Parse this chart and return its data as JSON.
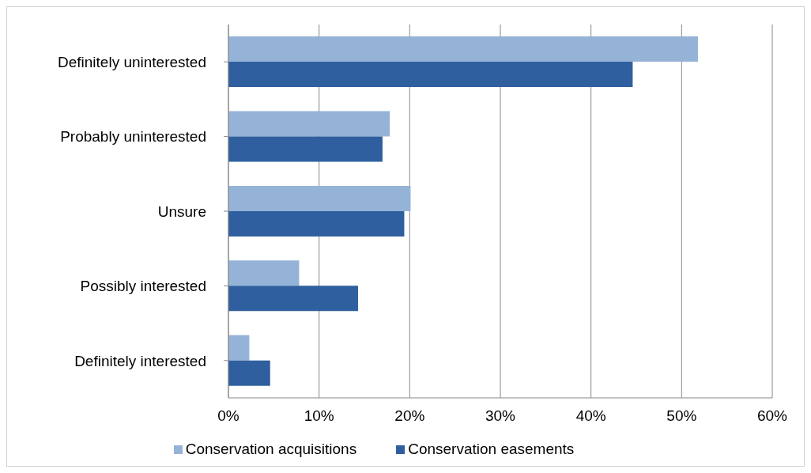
{
  "chart_data": {
    "type": "bar",
    "orientation": "horizontal",
    "categories": [
      "Definitely uninterested",
      "Probably uninterested",
      "Unsure",
      "Possibly interested",
      "Definitely interested"
    ],
    "series": [
      {
        "name": "Conservation acquisitions",
        "color": "#95b3d7",
        "values": [
          51.8,
          17.8,
          20.1,
          7.8,
          2.3
        ]
      },
      {
        "name": "Conservation easements",
        "color": "#2f5f9e",
        "values": [
          44.6,
          17.0,
          19.4,
          14.3,
          4.6
        ]
      }
    ],
    "xlim": [
      0,
      60
    ],
    "xticks": [
      {
        "value": 0,
        "label": "0%"
      },
      {
        "value": 10,
        "label": "10%"
      },
      {
        "value": 20,
        "label": "20%"
      },
      {
        "value": 30,
        "label": "30%"
      },
      {
        "value": 40,
        "label": "40%"
      },
      {
        "value": 50,
        "label": "50%"
      },
      {
        "value": 60,
        "label": "60%"
      }
    ],
    "grid": "x",
    "legend": "bottom"
  }
}
